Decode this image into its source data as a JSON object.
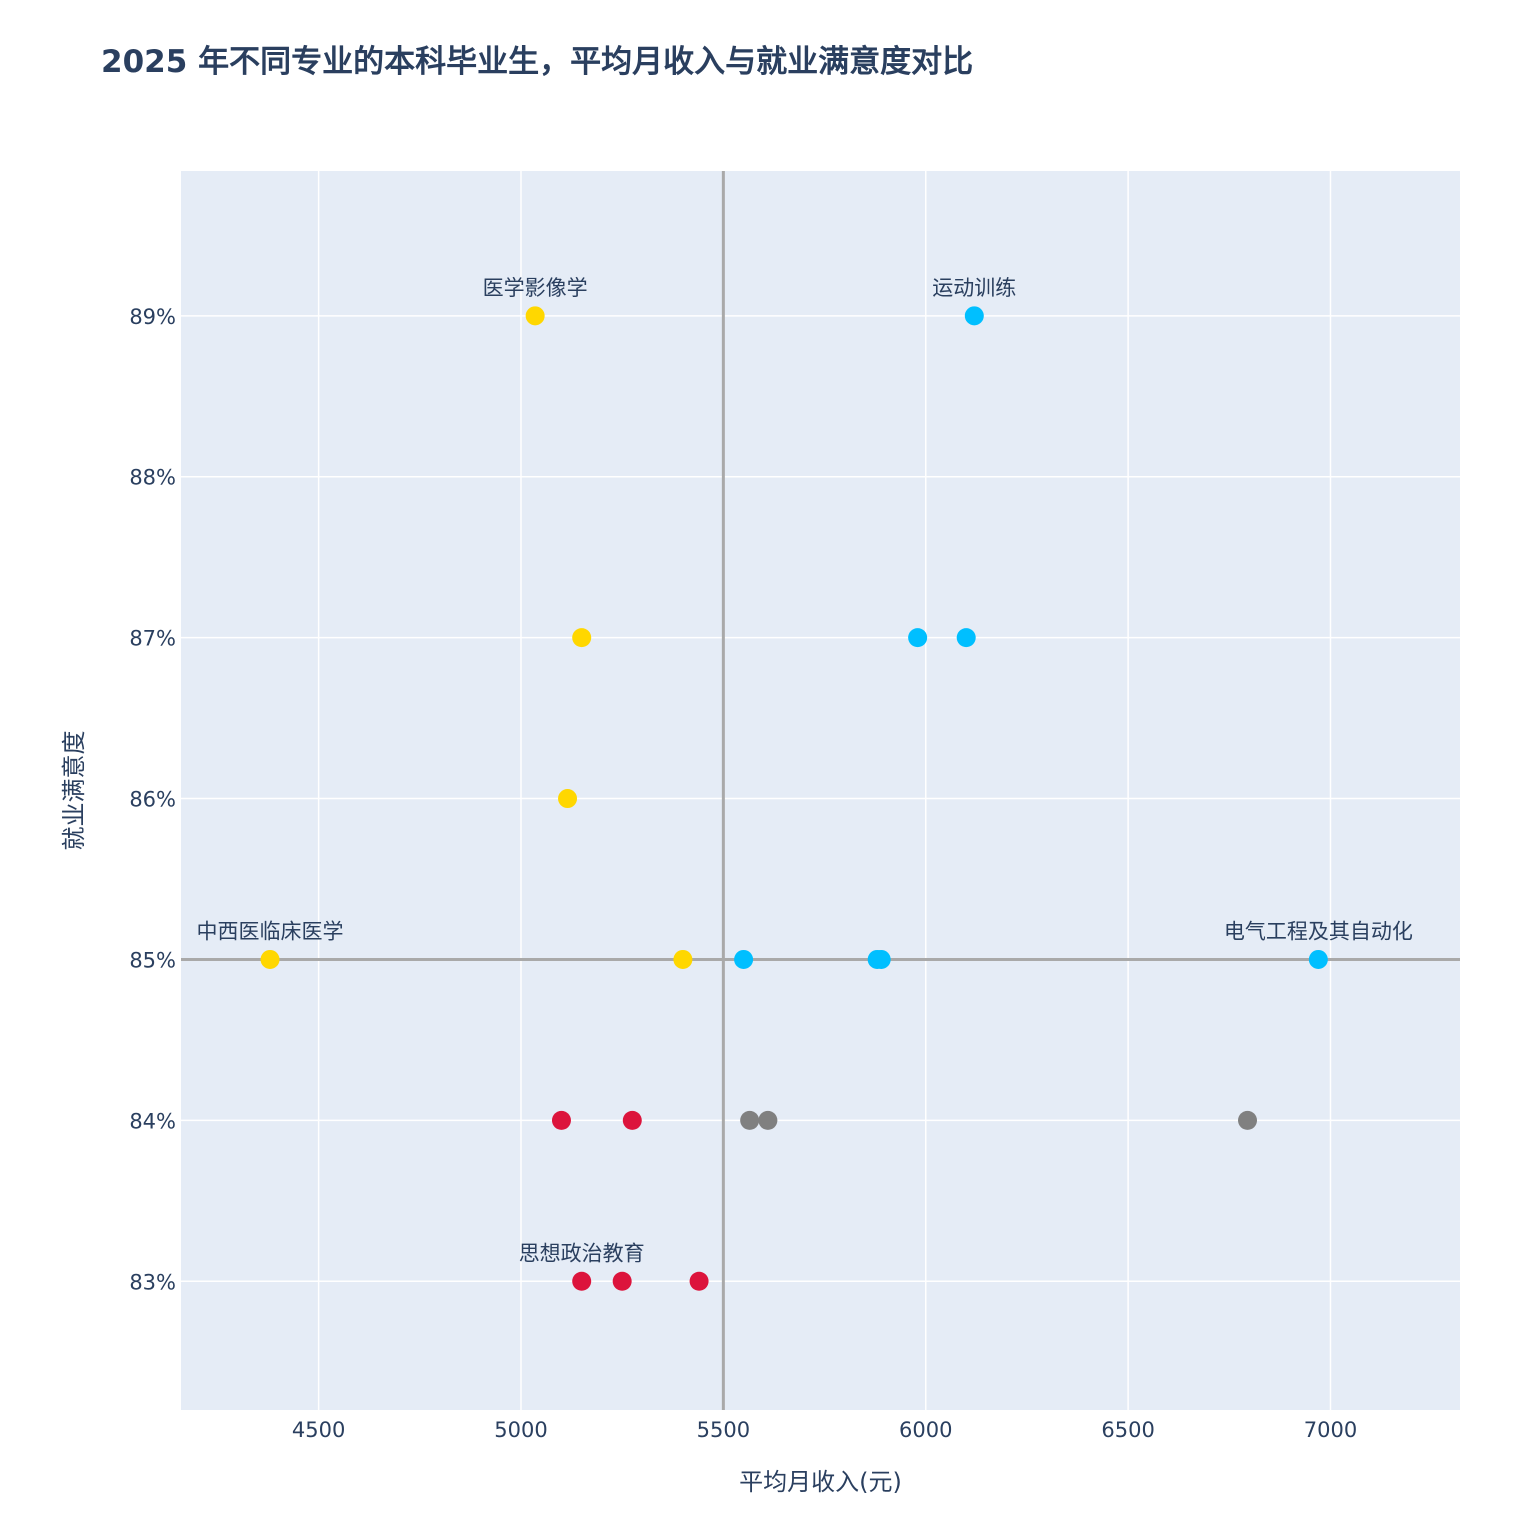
{
  "chart_data": {
    "type": "scatter",
    "title": "2025 年不同专业的本科毕业生，平均月收入与就业满意度对比",
    "xlabel": "平均月收入(元)",
    "ylabel": "就业满意度",
    "xlim": [
      4160,
      7320
    ],
    "ylim": [
      82.2,
      89.9
    ],
    "xticks": [
      4500,
      5000,
      5500,
      6000,
      6500,
      7000
    ],
    "yticks": [
      83,
      84,
      85,
      86,
      87,
      88,
      89
    ],
    "ytick_suffix": "%",
    "grid": true,
    "background": "#e5ecf6",
    "reference_lines": {
      "x": 5500,
      "y": 85,
      "color": "#a9a9a9"
    },
    "series": [
      {
        "color": "#ffd700",
        "points": [
          {
            "x": 5035,
            "y": 89,
            "label": "医学影像学"
          },
          {
            "x": 5150,
            "y": 87
          },
          {
            "x": 5115,
            "y": 86
          },
          {
            "x": 4380,
            "y": 85,
            "label": "中西医临床医学"
          },
          {
            "x": 5400,
            "y": 85
          }
        ]
      },
      {
        "color": "#00bfff",
        "points": [
          {
            "x": 6120,
            "y": 89,
            "label": "运动训练"
          },
          {
            "x": 5980,
            "y": 87
          },
          {
            "x": 6100,
            "y": 87
          },
          {
            "x": 5550,
            "y": 85
          },
          {
            "x": 5880,
            "y": 85
          },
          {
            "x": 5890,
            "y": 85
          },
          {
            "x": 6970,
            "y": 85,
            "label": "电气工程及其自动化"
          }
        ]
      },
      {
        "color": "#808080",
        "points": [
          {
            "x": 5565,
            "y": 84
          },
          {
            "x": 5610,
            "y": 84
          },
          {
            "x": 6795,
            "y": 84
          }
        ]
      },
      {
        "color": "#dc143c",
        "points": [
          {
            "x": 5100,
            "y": 84
          },
          {
            "x": 5275,
            "y": 84
          },
          {
            "x": 5150,
            "y": 83,
            "label": "思想政治教育"
          },
          {
            "x": 5250,
            "y": 83
          },
          {
            "x": 5440,
            "y": 83
          }
        ]
      }
    ]
  }
}
